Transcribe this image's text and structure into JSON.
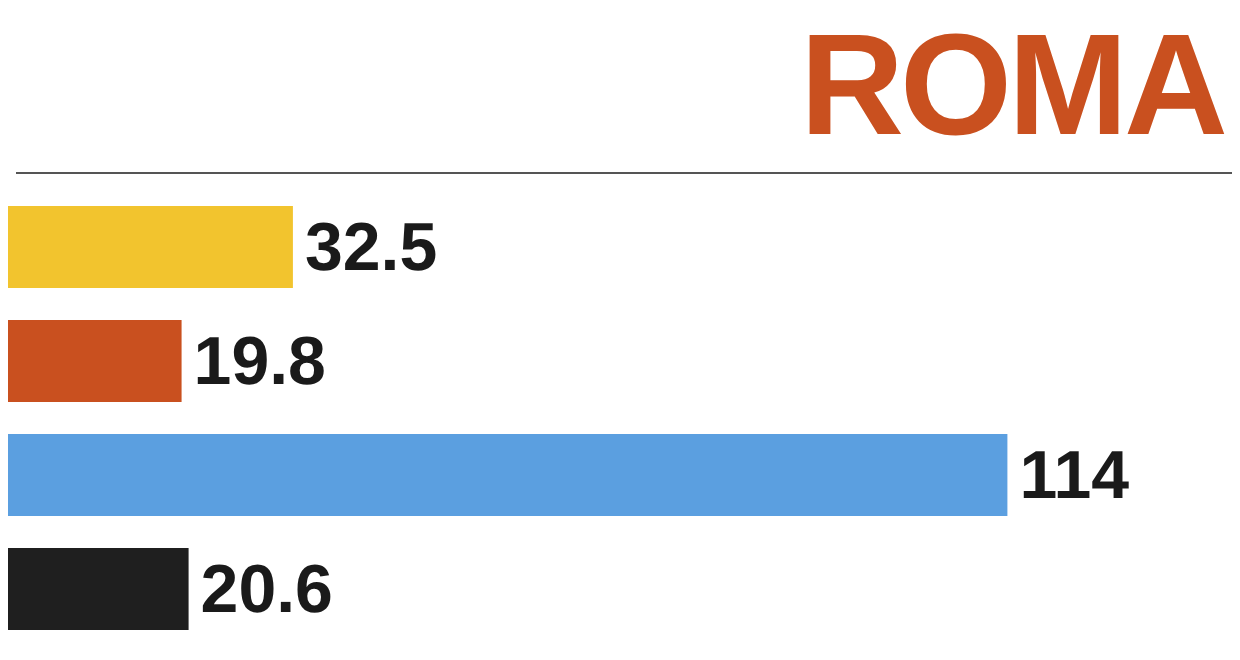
{
  "chart_data": {
    "type": "bar",
    "orientation": "horizontal",
    "title": "ROMA",
    "categories": [
      null,
      null,
      null,
      null
    ],
    "values": [
      32.5,
      19.8,
      114,
      20.6
    ],
    "colors": [
      "#f2c42e",
      "#c9501f",
      "#5b9fe0",
      "#1f1f1f"
    ],
    "data_labels": true
  }
}
